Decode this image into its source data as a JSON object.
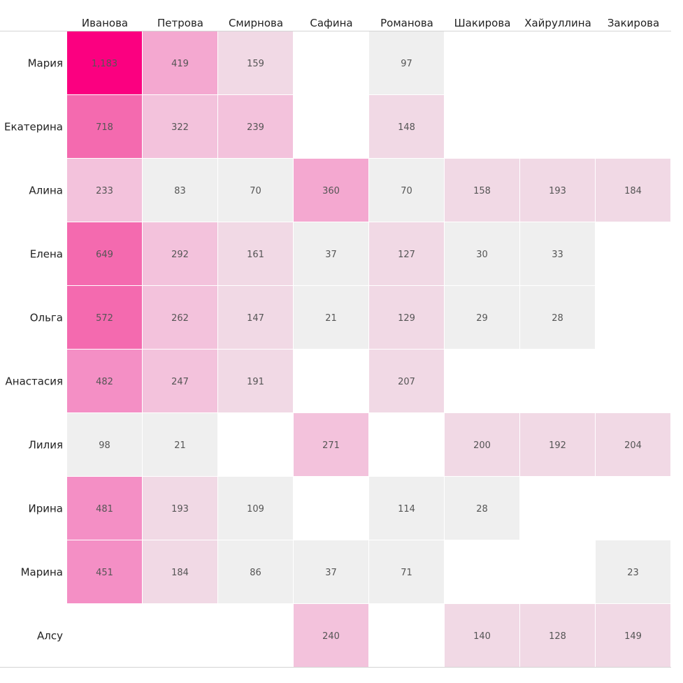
{
  "chart_data": {
    "type": "heatmap",
    "columns": [
      "Иванова",
      "Петрова",
      "Смирнова",
      "Сафина",
      "Романова",
      "Шакирова",
      "Хайруллина",
      "Закирова"
    ],
    "rows": [
      "Мария",
      "Екатерина",
      "Алина",
      "Елена",
      "Ольга",
      "Анастасия",
      "Лилия",
      "Ирина",
      "Марина",
      "Алсу"
    ],
    "values": [
      [
        1183,
        419,
        159,
        null,
        97,
        null,
        null,
        null
      ],
      [
        718,
        322,
        239,
        null,
        148,
        null,
        null,
        null
      ],
      [
        233,
        83,
        70,
        360,
        70,
        158,
        193,
        184
      ],
      [
        649,
        292,
        161,
        37,
        127,
        30,
        33,
        null
      ],
      [
        572,
        262,
        147,
        21,
        129,
        29,
        28,
        null
      ],
      [
        482,
        247,
        191,
        null,
        207,
        null,
        null,
        null
      ],
      [
        98,
        21,
        null,
        271,
        null,
        200,
        192,
        204
      ],
      [
        481,
        193,
        109,
        null,
        114,
        28,
        null,
        null
      ],
      [
        451,
        184,
        86,
        37,
        71,
        null,
        null,
        23
      ],
      [
        null,
        null,
        null,
        240,
        null,
        140,
        128,
        149
      ]
    ],
    "value_labels": [
      [
        "1,183",
        "419",
        "159",
        "",
        "97",
        "",
        "",
        ""
      ],
      [
        "718",
        "322",
        "239",
        "",
        "148",
        "",
        "",
        ""
      ],
      [
        "233",
        "83",
        "70",
        "360",
        "70",
        "158",
        "193",
        "184"
      ],
      [
        "649",
        "292",
        "161",
        "37",
        "127",
        "30",
        "33",
        ""
      ],
      [
        "572",
        "262",
        "147",
        "21",
        "129",
        "29",
        "28",
        ""
      ],
      [
        "482",
        "247",
        "191",
        "",
        "207",
        "",
        "",
        ""
      ],
      [
        "98",
        "21",
        "",
        "271",
        "",
        "200",
        "192",
        "204"
      ],
      [
        "481",
        "193",
        "109",
        "",
        "114",
        "28",
        "",
        ""
      ],
      [
        "451",
        "184",
        "86",
        "37",
        "71",
        "",
        "",
        "23"
      ],
      [
        "",
        "",
        "",
        "240",
        "",
        "140",
        "128",
        "149"
      ]
    ],
    "color_scale": {
      "empty": "#ffffff",
      "low": "#efefef",
      "light": "#f1d9e5",
      "mid": "#f3c2dc",
      "strong": "#f4a8d0",
      "stronger": "#f48fc5",
      "high": "#f46aaf",
      "max": "#fb0080"
    }
  }
}
